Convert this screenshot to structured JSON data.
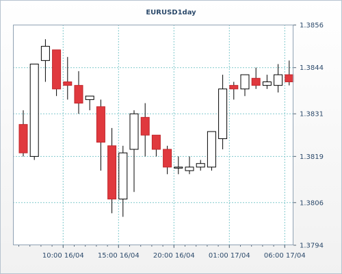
{
  "chart_data": {
    "type": "candlestick",
    "title": "EURUSD1day",
    "xlabel": "",
    "ylabel": "",
    "ylim": [
      1.3794,
      1.3862
    ],
    "yticks": [
      "1.3856",
      "1.3844",
      "1.3831",
      "1.3819",
      "1.3806",
      "1.3794"
    ],
    "xticks": [
      "10:00 16/04",
      "15:00 16/04",
      "20:00 16/04",
      "01:00 17/04",
      "06:00 17/04"
    ],
    "grid": true,
    "colors": {
      "up_fill": "#ffffff",
      "down_fill": "#e0393e",
      "wick": "#000000",
      "grid": "#7fc8cc"
    },
    "candles": [
      {
        "open": 1.3828,
        "high": 1.3832,
        "low": 1.3819,
        "close": 1.382
      },
      {
        "open": 1.3819,
        "high": 1.3845,
        "low": 1.3818,
        "close": 1.3845
      },
      {
        "open": 1.3846,
        "high": 1.3852,
        "low": 1.384,
        "close": 1.385
      },
      {
        "open": 1.3849,
        "high": 1.3849,
        "low": 1.3836,
        "close": 1.3838
      },
      {
        "open": 1.384,
        "high": 1.3847,
        "low": 1.3835,
        "close": 1.3839
      },
      {
        "open": 1.3839,
        "high": 1.3843,
        "low": 1.3831,
        "close": 1.3834
      },
      {
        "open": 1.3835,
        "high": 1.3836,
        "low": 1.3832,
        "close": 1.3836
      },
      {
        "open": 1.3833,
        "high": 1.3835,
        "low": 1.3815,
        "close": 1.3823
      },
      {
        "open": 1.3822,
        "high": 1.3827,
        "low": 1.3803,
        "close": 1.3807
      },
      {
        "open": 1.3807,
        "high": 1.3822,
        "low": 1.3802,
        "close": 1.382
      },
      {
        "open": 1.3821,
        "high": 1.3832,
        "low": 1.3809,
        "close": 1.3831
      },
      {
        "open": 1.383,
        "high": 1.3834,
        "low": 1.3819,
        "close": 1.3825
      },
      {
        "open": 1.3825,
        "high": 1.3825,
        "low": 1.3819,
        "close": 1.3821
      },
      {
        "open": 1.3821,
        "high": 1.3822,
        "low": 1.3814,
        "close": 1.3816
      },
      {
        "open": 1.3816,
        "high": 1.3819,
        "low": 1.3814,
        "close": 1.3816
      },
      {
        "open": 1.3815,
        "high": 1.3819,
        "low": 1.3814,
        "close": 1.3816
      },
      {
        "open": 1.3816,
        "high": 1.3818,
        "low": 1.3815,
        "close": 1.3817
      },
      {
        "open": 1.3816,
        "high": 1.3826,
        "low": 1.3815,
        "close": 1.3826
      },
      {
        "open": 1.3824,
        "high": 1.3842,
        "low": 1.3821,
        "close": 1.3838
      },
      {
        "open": 1.3839,
        "high": 1.384,
        "low": 1.3835,
        "close": 1.3838
      },
      {
        "open": 1.3838,
        "high": 1.3842,
        "low": 1.3836,
        "close": 1.3842
      },
      {
        "open": 1.3841,
        "high": 1.3844,
        "low": 1.3838,
        "close": 1.3839
      },
      {
        "open": 1.3839,
        "high": 1.3842,
        "low": 1.3838,
        "close": 1.384
      },
      {
        "open": 1.3839,
        "high": 1.3845,
        "low": 1.3837,
        "close": 1.3842
      },
      {
        "open": 1.3842,
        "high": 1.3846,
        "low": 1.3839,
        "close": 1.384
      }
    ]
  }
}
